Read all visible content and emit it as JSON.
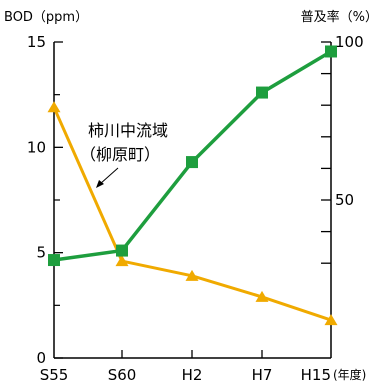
{
  "chart_data": {
    "type": "line",
    "categories": [
      "S55",
      "S60",
      "H2",
      "H7",
      "H15"
    ],
    "x_unit_label": "(年度)",
    "left_axis": {
      "label": "BOD（ppm）",
      "range": [
        0,
        15
      ],
      "ticks": [
        0,
        5,
        10,
        15
      ],
      "minor_ticks": [
        2.5,
        7.5,
        12.5
      ]
    },
    "right_axis": {
      "label": "普及率（%）",
      "range": [
        0,
        100
      ],
      "tick_labels": [
        50,
        100
      ],
      "ticks": [
        30,
        40,
        50,
        60,
        70,
        80,
        90,
        100
      ]
    },
    "series": [
      {
        "axis": "left",
        "color": "#f0aa00",
        "marker": "triangle",
        "values": [
          11.9,
          4.6,
          3.9,
          2.9,
          1.8
        ]
      },
      {
        "axis": "right",
        "color": "#1e9e3e",
        "marker": "square",
        "values": [
          31,
          34,
          62,
          84,
          97
        ]
      }
    ],
    "annotation": {
      "lines": [
        "柿川中流域",
        "（柳原町）"
      ],
      "points_to": "left-series"
    },
    "grid": false
  }
}
